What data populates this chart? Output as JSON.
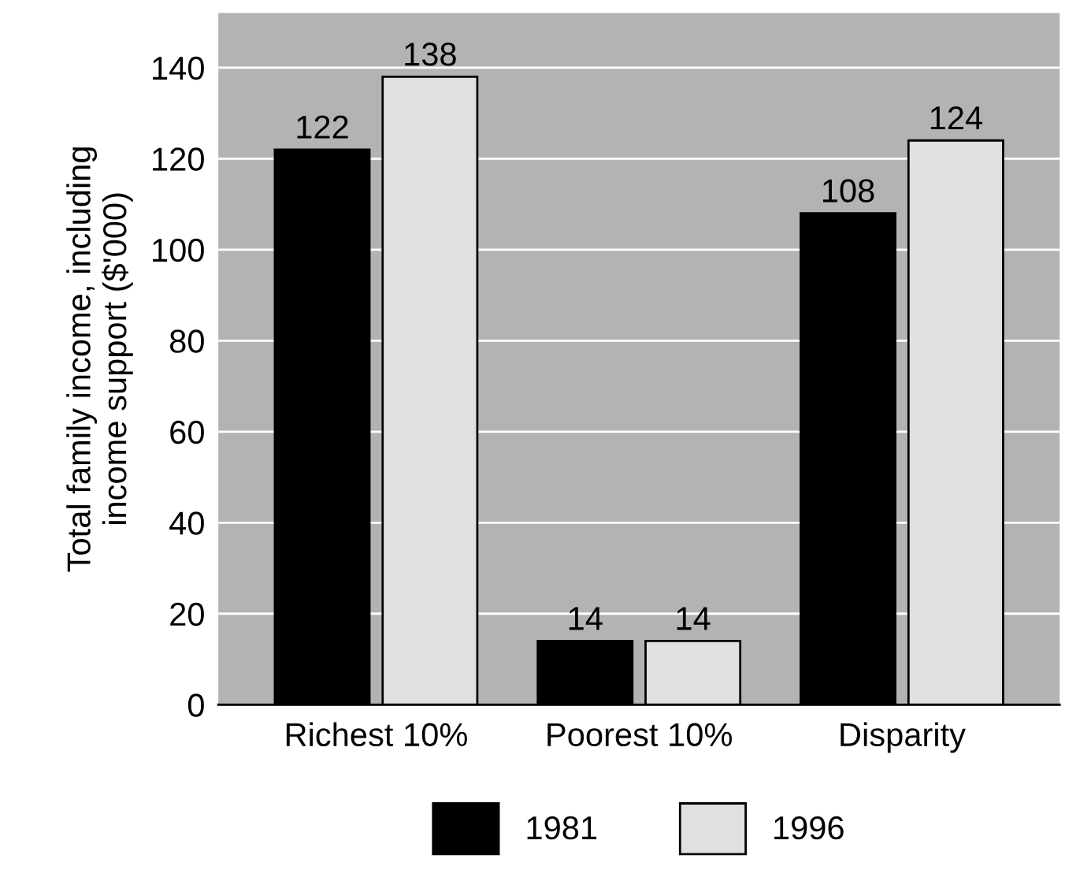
{
  "chart_data": {
    "type": "bar",
    "ylabel": "Total family income, including\nincome support ($'000)",
    "categories": [
      "Richest 10%",
      "Poorest 10%",
      "Disparity"
    ],
    "series": [
      {
        "name": "1981",
        "color": "#000000",
        "values": [
          122,
          14,
          108
        ]
      },
      {
        "name": "1996",
        "color": "#e0e0e0",
        "values": [
          138,
          14,
          124
        ]
      }
    ],
    "ylim": [
      0,
      152
    ],
    "yticks": [
      0,
      20,
      40,
      60,
      80,
      100,
      120,
      140
    ],
    "grid": "y",
    "legend": "bottom",
    "data_labels": true
  }
}
